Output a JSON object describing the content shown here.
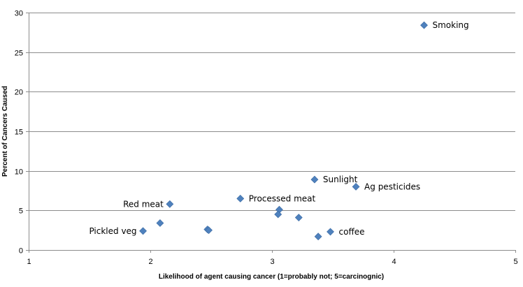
{
  "chart_data": {
    "type": "scatter",
    "title": "",
    "xlabel": "Likelihood of agent causing cancer (1=probably not; 5=carcinognic)",
    "ylabel": "Percent of Cancers Caused",
    "xlim": [
      1,
      5
    ],
    "ylim": [
      0,
      30
    ],
    "x_ticks": [
      "1",
      "2",
      "3",
      "4",
      "5"
    ],
    "y_ticks": [
      "0",
      "5",
      "10",
      "15",
      "20",
      "25",
      "30"
    ],
    "grid": "horizontal",
    "legend": "none",
    "marker_color": "#4f81bd",
    "points": [
      {
        "x": 4.25,
        "y": 28.4,
        "label": "Smoking"
      },
      {
        "x": 3.35,
        "y": 8.9,
        "label": "Sunlight"
      },
      {
        "x": 3.69,
        "y": 8.0,
        "label": "Ag pesticides"
      },
      {
        "x": 2.74,
        "y": 6.5,
        "label": "Processed meat"
      },
      {
        "x": 2.16,
        "y": 5.8,
        "label": "Red meat"
      },
      {
        "x": 3.06,
        "y": 5.1,
        "label": ""
      },
      {
        "x": 3.05,
        "y": 4.5,
        "label": ""
      },
      {
        "x": 3.22,
        "y": 4.1,
        "label": ""
      },
      {
        "x": 2.08,
        "y": 3.4,
        "label": ""
      },
      {
        "x": 2.47,
        "y": 2.6,
        "label": ""
      },
      {
        "x": 2.48,
        "y": 2.5,
        "label": ""
      },
      {
        "x": 1.94,
        "y": 2.4,
        "label": "Pickled veg"
      },
      {
        "x": 3.48,
        "y": 2.3,
        "label": "coffee"
      },
      {
        "x": 3.38,
        "y": 1.7,
        "label": ""
      }
    ]
  }
}
